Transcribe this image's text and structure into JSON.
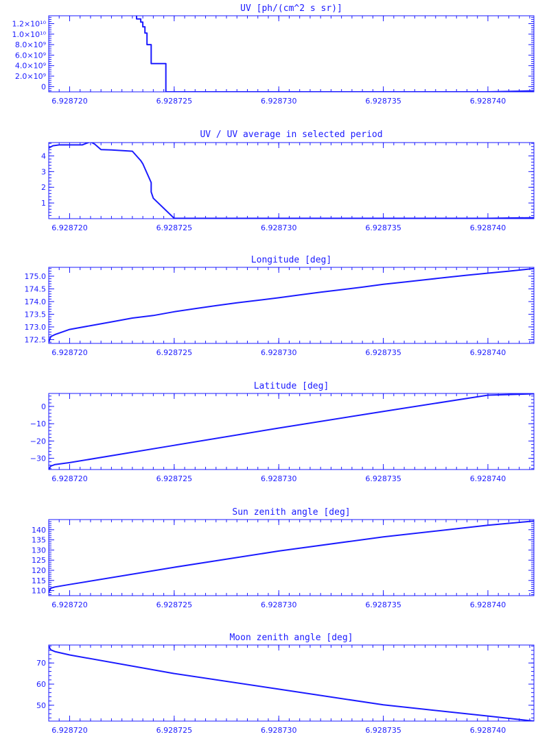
{
  "colors": {
    "foreground": "#1a1aff",
    "background": "#ffffff"
  },
  "x_axis": {
    "ticks": [
      6.92872,
      6.928725,
      6.92873,
      6.928735,
      6.92874
    ],
    "tick_labels": [
      "6.928720",
      "6.928725",
      "6.928730",
      "6.928735",
      "6.928740"
    ]
  },
  "chart_data": [
    {
      "type": "line",
      "title": "UV [ph/(cm^2 s sr)]",
      "xlim": [
        6.928719,
        6.9287422
      ],
      "ylim": [
        -1000000000.0,
        13500000000.0
      ],
      "y_ticks": [
        0,
        2000000000.0,
        4000000000.0,
        6000000000.0,
        8000000000.0,
        10000000000.0,
        12000000000.0
      ],
      "y_tick_labels": [
        "0",
        "2.0×10⁹",
        "4.0×10⁹",
        "6.0×10⁹",
        "8.0×10⁹",
        "1.0×10¹⁰",
        "1.2×10¹⁰"
      ],
      "x": [
        6.928723,
        6.9287232,
        6.9287232,
        6.9287234,
        6.9287234,
        6.9287235,
        6.9287235,
        6.9287236,
        6.9287236,
        6.9287237,
        6.9287237,
        6.9287239,
        6.9287239,
        6.9287239,
        6.9287239,
        6.9287239,
        6.9287246,
        6.9287246,
        6.928726,
        6.92874,
        6.9287422
      ],
      "y": [
        13600000000.0,
        13600000000.0,
        12900000000.0,
        12900000000.0,
        12300000000.0,
        12300000000.0,
        11400000000.0,
        11400000000.0,
        10200000000.0,
        10200000000.0,
        8000000000.0,
        8000000000.0,
        6500000000.0,
        6500000000.0,
        4400000000.0,
        4400000000.0,
        4400000000.0,
        -1000000000.0,
        -1000000000.0,
        -1000000000.0,
        -800000000.0
      ]
    },
    {
      "type": "line",
      "title": "UV / UV average in selected period",
      "xlim": [
        6.928719,
        6.9287422
      ],
      "ylim": [
        0,
        4.85
      ],
      "y_ticks": [
        1,
        2,
        3,
        4
      ],
      "y_tick_labels": [
        "1",
        "2",
        "3",
        "4"
      ],
      "x": [
        6.928719,
        6.9287192,
        6.9287195,
        6.9287206,
        6.9287208,
        6.928721,
        6.9287212,
        6.9287215,
        6.928722,
        6.928723,
        6.9287232,
        6.9287234,
        6.9287235,
        6.9287237,
        6.9287239,
        6.9287239,
        6.928724,
        6.928725,
        6.92874,
        6.9287422
      ],
      "y": [
        4.5,
        4.65,
        4.7,
        4.7,
        4.8,
        4.9,
        4.75,
        4.4,
        4.38,
        4.3,
        4.0,
        3.7,
        3.5,
        2.9,
        2.3,
        1.7,
        1.3,
        0.02,
        0.02,
        0.06
      ]
    },
    {
      "type": "line",
      "title": "Longitude [deg]",
      "xlim": [
        6.928719,
        6.9287422
      ],
      "ylim": [
        172.35,
        175.35
      ],
      "y_ticks": [
        172.5,
        173.0,
        173.5,
        174.0,
        174.5,
        175.0
      ],
      "y_tick_labels": [
        "172.5",
        "173.0",
        "173.5",
        "174.0",
        "174.5",
        "175.0"
      ],
      "x": [
        6.928719,
        6.9287191,
        6.9287193,
        6.92872,
        6.928721,
        6.928722,
        6.928723,
        6.928724,
        6.928725,
        6.928726,
        6.928727,
        6.928728,
        6.928729,
        6.92873,
        6.928731,
        6.928732,
        6.928733,
        6.928734,
        6.928735,
        6.928736,
        6.928737,
        6.928738,
        6.928739,
        6.92874,
        6.928741,
        6.9287422
      ],
      "y": [
        172.4,
        172.62,
        172.7,
        172.9,
        173.05,
        173.2,
        173.35,
        173.45,
        173.6,
        173.72,
        173.84,
        173.95,
        174.05,
        174.15,
        174.26,
        174.37,
        174.47,
        174.57,
        174.68,
        174.77,
        174.86,
        174.95,
        175.04,
        175.12,
        175.2,
        175.3
      ]
    },
    {
      "type": "line",
      "title": "Latitude [deg]",
      "xlim": [
        6.928719,
        6.9287422
      ],
      "ylim": [
        -36.5,
        7.5
      ],
      "y_ticks": [
        -30,
        -20,
        -10,
        0
      ],
      "y_tick_labels": [
        "−30",
        "−20",
        "−10",
        "0"
      ],
      "x": [
        6.928719,
        6.9287191,
        6.9287193,
        6.92872,
        6.928725,
        6.92873,
        6.928735,
        6.92874,
        6.9287422
      ],
      "y": [
        -36.3,
        -34.5,
        -33.6,
        -32.5,
        -22.5,
        -12.5,
        -2.9,
        6.5,
        7.3
      ]
    },
    {
      "type": "line",
      "title": "Sun zenith angle [deg]",
      "xlim": [
        6.928719,
        6.9287422
      ],
      "ylim": [
        107.5,
        145
      ],
      "y_ticks": [
        110,
        115,
        120,
        125,
        130,
        135,
        140
      ],
      "y_tick_labels": [
        "110",
        "115",
        "120",
        "125",
        "130",
        "135",
        "140"
      ],
      "x": [
        6.928719,
        6.9287191,
        6.9287193,
        6.92872,
        6.928725,
        6.92873,
        6.928735,
        6.92874,
        6.9287422
      ],
      "y": [
        109.2,
        111.2,
        111.8,
        113.0,
        121.5,
        129.5,
        136.5,
        142.2,
        144.3
      ]
    },
    {
      "type": "line",
      "title": "Moon zenith angle [deg]",
      "xlim": [
        6.928719,
        6.9287422
      ],
      "ylim": [
        42.5,
        78.5
      ],
      "y_ticks": [
        50,
        60,
        70
      ],
      "y_tick_labels": [
        "50",
        "60",
        "70"
      ],
      "x": [
        6.928719,
        6.9287191,
        6.9287193,
        6.92872,
        6.928725,
        6.92873,
        6.928735,
        6.92874,
        6.9287422
      ],
      "y": [
        78,
        76.2,
        75.4,
        73.8,
        65.0,
        57.6,
        50.2,
        44.9,
        42.5
      ]
    }
  ]
}
